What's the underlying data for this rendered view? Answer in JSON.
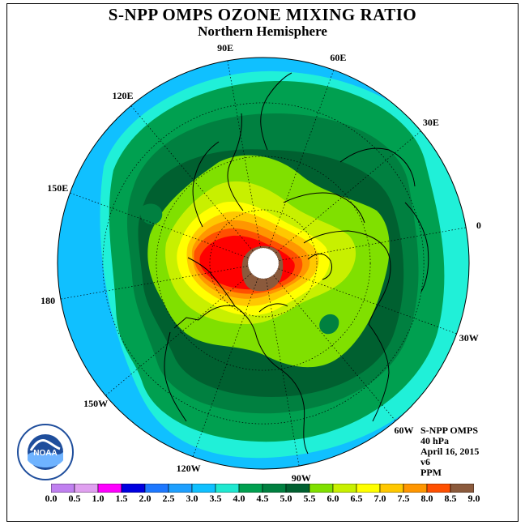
{
  "header": {
    "title": "S-NPP OMPS OZONE MIXING RATIO",
    "subtitle": "Northern Hemisphere"
  },
  "longitude_labels": [
    {
      "text": "90E",
      "lon": 90
    },
    {
      "text": "60E",
      "lon": 60
    },
    {
      "text": "30E",
      "lon": 30
    },
    {
      "text": "0",
      "lon": 0
    },
    {
      "text": "30W",
      "lon": -30
    },
    {
      "text": "60W",
      "lon": -60
    },
    {
      "text": "90W",
      "lon": -90
    },
    {
      "text": "120W",
      "lon": -120
    },
    {
      "text": "150W",
      "lon": -150
    },
    {
      "text": "180",
      "lon": 180
    },
    {
      "text": "150E",
      "lon": 150
    },
    {
      "text": "120E",
      "lon": 120
    }
  ],
  "info": {
    "instrument": "S-NPP OMPS",
    "pressure_level": "40 hPa",
    "date": "April 16, 2015",
    "version": "v6",
    "units": "PPM"
  },
  "logo": {
    "text": "NOAA",
    "ring_text": "NATIONAL OCEANIC AND ATMOSPHERIC ADMINISTRATION · U.S. DEPARTMENT OF COMMERCE"
  },
  "colorbar": {
    "tick_labels": [
      "0.0",
      "0.5",
      "1.0",
      "1.5",
      "2.0",
      "2.5",
      "3.0",
      "3.5",
      "4.0",
      "4.5",
      "5.0",
      "5.5",
      "6.0",
      "6.5",
      "7.0",
      "7.5",
      "8.0",
      "8.5",
      "9.0"
    ],
    "colors": [
      "#c080f0",
      "#e0a0f0",
      "#ff00ff",
      "#0000e0",
      "#1e78ff",
      "#1ea0ff",
      "#10c0ff",
      "#20e8d0",
      "#00a050",
      "#008040",
      "#006030",
      "#80e000",
      "#c8f000",
      "#ffff00",
      "#ffc800",
      "#ff9600",
      "#ff5000",
      "#ff0000",
      "#8b5a3c"
    ]
  },
  "map_colors": {
    "outside": "#10c0ff",
    "level_3_5": "#20f0d8",
    "level_4_0": "#00a050",
    "level_4_5": "#008040",
    "level_5_0": "#006030",
    "level_5_5": "#80e000",
    "level_6_0": "#c8f000",
    "level_6_5": "#ffff00",
    "level_7_0": "#ffc800",
    "level_7_5": "#ff9600",
    "level_8_0": "#ff5000",
    "level_8_5": "#ff0000",
    "level_9_0": "#8b5a3c",
    "pole_hole": "#ffffff"
  }
}
